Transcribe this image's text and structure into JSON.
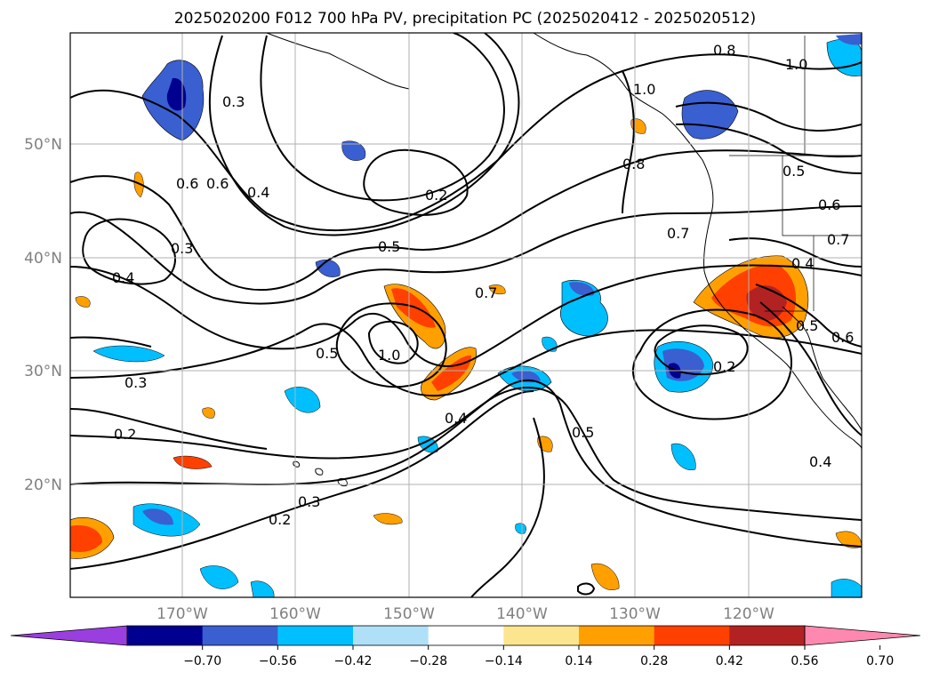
{
  "title": "2025020200 F012 700 hPa PV, precipitation PC (2025020412 - 2025020512)",
  "lat_labels": [
    "50°N",
    "40°N",
    "30°N",
    "20°N"
  ],
  "lon_labels": [
    "170°W",
    "160°W",
    "150°W",
    "140°W",
    "130°W",
    "120°W"
  ],
  "colorbar": {
    "ticks": [
      "−0.70",
      "−0.56",
      "−0.42",
      "−0.28",
      "−0.14",
      "0.14",
      "0.28",
      "0.42",
      "0.56",
      "0.70"
    ],
    "colors": [
      "#9a3ee0",
      "#000090",
      "#3a5fd0",
      "#00bfff",
      "#b0e0f8",
      "#ffffff",
      "#fbe58f",
      "#ffa000",
      "#ff4000",
      "#b22222",
      "#ff88b0"
    ]
  },
  "contour_labels": [
    "0.8",
    "1.0",
    "1.0",
    "0.3",
    "0.8",
    "0.5",
    "0.6",
    "0.7",
    "0.6",
    "0.6",
    "0.4",
    "0.2",
    "0.3",
    "0.5",
    "0.4",
    "0.7",
    "0.7",
    "0.4",
    "0.5",
    "0.6",
    "0.5",
    "1.0",
    "0.2",
    "0.3",
    "0.4",
    "0.2",
    "0.3",
    "0.2",
    "0.5",
    "0.4"
  ],
  "colors": {
    "contour": "#000000",
    "grid": "#b0b0b0",
    "coast": "#000000"
  }
}
